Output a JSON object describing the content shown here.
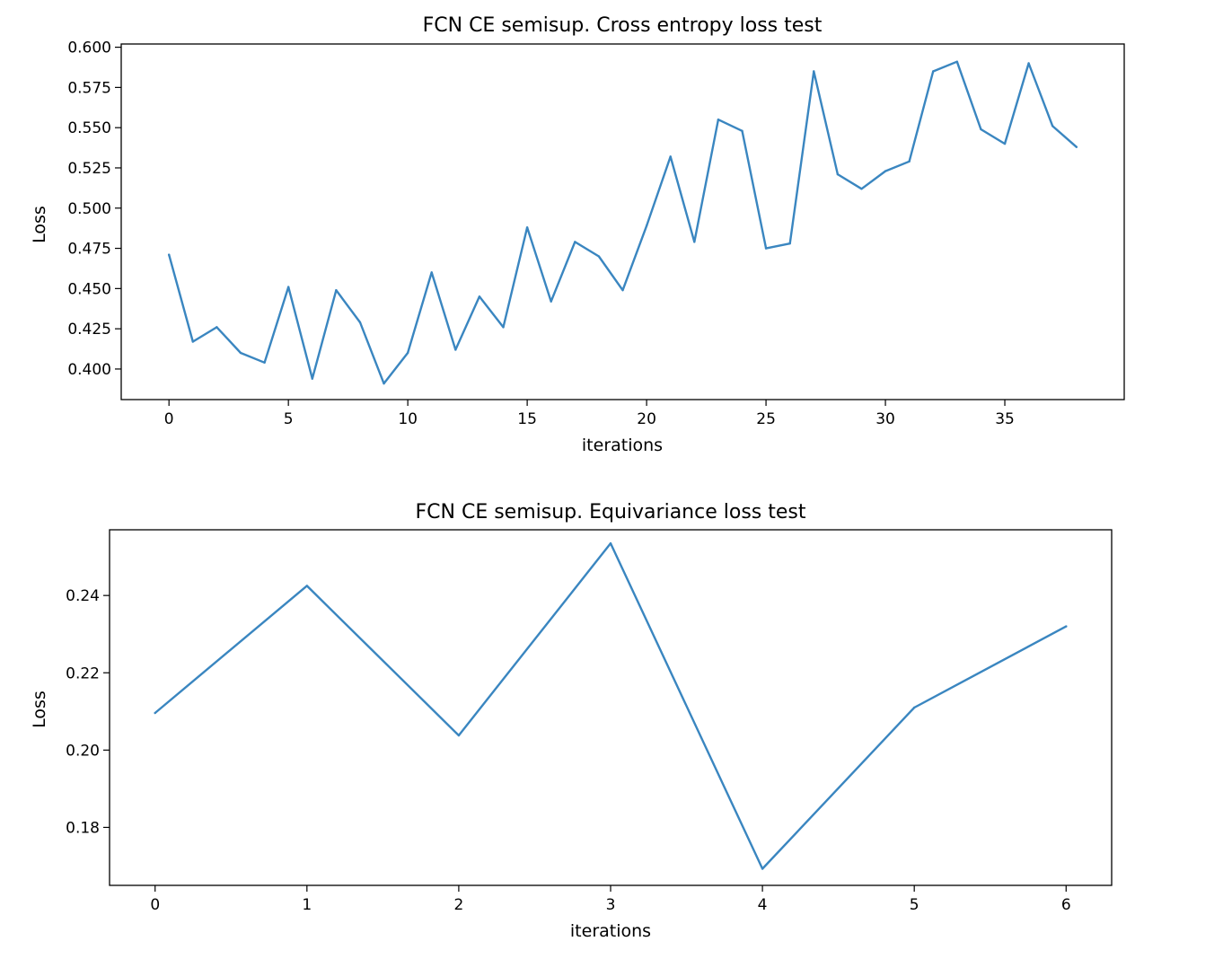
{
  "colors": {
    "series": "#3a86c0"
  },
  "chart_data": [
    {
      "type": "line",
      "title": "FCN CE semisup. Cross entropy loss test",
      "xlabel": "iterations",
      "ylabel": "Loss",
      "xlim": [
        -2,
        40
      ],
      "ylim": [
        0.381,
        0.602
      ],
      "xticks": [
        0,
        5,
        10,
        15,
        20,
        25,
        30,
        35
      ],
      "xtick_labels": [
        "0",
        "5",
        "10",
        "15",
        "20",
        "25",
        "30",
        "35"
      ],
      "yticks": [
        0.4,
        0.425,
        0.45,
        0.475,
        0.5,
        0.525,
        0.55,
        0.575,
        0.6
      ],
      "ytick_labels": [
        "0.400",
        "0.425",
        "0.450",
        "0.475",
        "0.500",
        "0.525",
        "0.550",
        "0.575",
        "0.600"
      ],
      "grid": false,
      "x": [
        0,
        1,
        2,
        3,
        4,
        5,
        6,
        7,
        8,
        9,
        10,
        11,
        12,
        13,
        14,
        15,
        16,
        17,
        18,
        19,
        20,
        21,
        22,
        23,
        24,
        25,
        26,
        27,
        28,
        29,
        30,
        31,
        32,
        33,
        34,
        35,
        36,
        37,
        38
      ],
      "series": [
        {
          "values": [
            0.471,
            0.417,
            0.426,
            0.41,
            0.404,
            0.451,
            0.394,
            0.449,
            0.429,
            0.391,
            0.41,
            0.46,
            0.412,
            0.445,
            0.426,
            0.488,
            0.442,
            0.479,
            0.47,
            0.449,
            0.489,
            0.532,
            0.479,
            0.555,
            0.548,
            0.475,
            0.478,
            0.585,
            0.521,
            0.512,
            0.523,
            0.529,
            0.585,
            0.591,
            0.549,
            0.54,
            0.59,
            0.551,
            0.538
          ]
        }
      ]
    },
    {
      "type": "line",
      "title": "FCN CE semisup. Equivariance loss test",
      "xlabel": "iterations",
      "ylabel": "Loss",
      "xlim": [
        -0.3,
        6.3
      ],
      "ylim": [
        0.165,
        0.257
      ],
      "xticks": [
        0,
        1,
        2,
        3,
        4,
        5,
        6
      ],
      "xtick_labels": [
        "0",
        "1",
        "2",
        "3",
        "4",
        "5",
        "6"
      ],
      "yticks": [
        0.18,
        0.2,
        0.22,
        0.24
      ],
      "ytick_labels": [
        "0.18",
        "0.20",
        "0.22",
        "0.24"
      ],
      "grid": false,
      "x": [
        0,
        1,
        2,
        3,
        4,
        5,
        6
      ],
      "series": [
        {
          "values": [
            0.2096,
            0.2425,
            0.2038,
            0.2535,
            0.1693,
            0.211,
            0.232
          ]
        }
      ]
    }
  ]
}
